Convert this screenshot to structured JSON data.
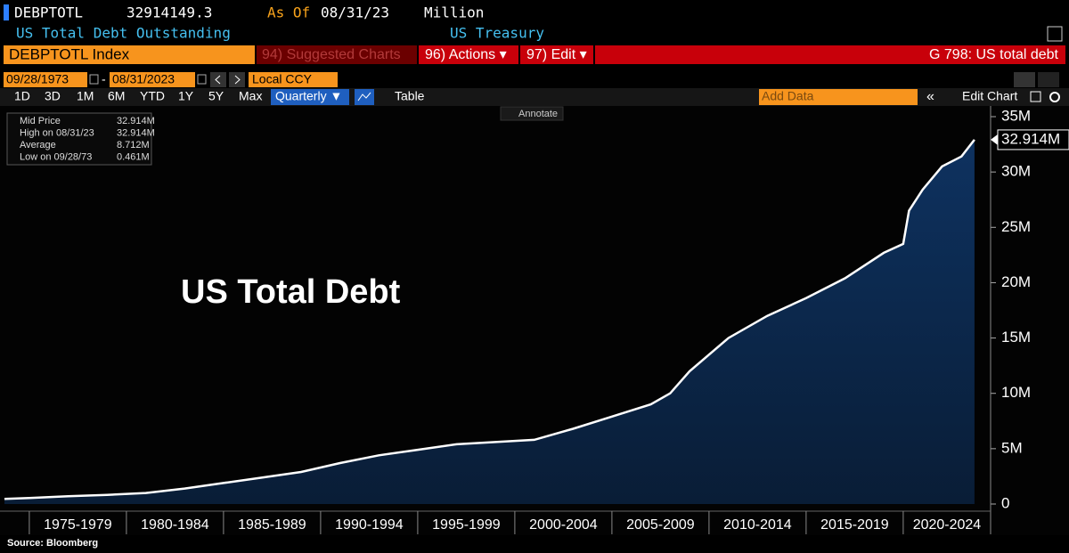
{
  "header": {
    "ticker": "DEBPTOTL",
    "last_value": "32914149.3",
    "as_of_label": "As Of",
    "as_of_date": "08/31/23",
    "unit": "Million",
    "description": "US Total Debt Outstanding",
    "source_name": "US Treasury"
  },
  "toolbar": {
    "security": "DEBPTOTL Index",
    "suggested": "94) Suggested Charts",
    "actions": "96) Actions ▾",
    "edit": "97) Edit ▾",
    "function": "G 798: US total debt",
    "start_date": "09/28/1973",
    "date_sep": "-",
    "end_date": "08/31/2023",
    "currency": "Local CCY",
    "ranges": [
      "1D",
      "3D",
      "1M",
      "6M",
      "YTD",
      "1Y",
      "5Y",
      "Max"
    ],
    "frequency": "Quarterly ▼",
    "table": "Table",
    "add_data": "Add Data",
    "collapse": "«",
    "edit_chart": "Edit Chart",
    "annotate": "Annotate"
  },
  "legend_box": [
    [
      "Mid Price",
      "32.914M"
    ],
    [
      "High on 08/31/23",
      "32.914M"
    ],
    [
      "Average",
      "8.712M"
    ],
    [
      "Low on 09/28/73",
      "0.461M"
    ]
  ],
  "chart_data": {
    "type": "area",
    "annotation": "US Total Debt",
    "source": "Source: Bloomberg",
    "x": [
      1973.72,
      1975,
      1977,
      1979,
      1981,
      1983,
      1985,
      1987,
      1989,
      1991,
      1993,
      1995,
      1997,
      1999,
      2001,
      2003,
      2005,
      2007,
      2008,
      2009,
      2011,
      2013,
      2015,
      2017,
      2019,
      2020,
      2020.3,
      2021,
      2022,
      2023,
      2023.67
    ],
    "values": [
      0.461,
      0.55,
      0.7,
      0.83,
      1.0,
      1.4,
      1.9,
      2.4,
      2.9,
      3.7,
      4.4,
      4.9,
      5.4,
      5.6,
      5.8,
      6.8,
      7.9,
      9.0,
      10.0,
      12.0,
      15.0,
      17.0,
      18.6,
      20.4,
      22.7,
      23.5,
      26.5,
      28.4,
      30.5,
      31.4,
      32.914
    ],
    "last_label": "32.914M",
    "line_color": "#ffffff",
    "fill_color": "#0e3260",
    "xlim": [
      1973.72,
      2024.5
    ],
    "xticks": [
      {
        "value": 1975,
        "label": "1975-1979"
      },
      {
        "value": 1980,
        "label": "1980-1984"
      },
      {
        "value": 1985,
        "label": "1985-1989"
      },
      {
        "value": 1990,
        "label": "1990-1994"
      },
      {
        "value": 1995,
        "label": "1995-1999"
      },
      {
        "value": 2000,
        "label": "2000-2004"
      },
      {
        "value": 2005,
        "label": "2005-2009"
      },
      {
        "value": 2010,
        "label": "2010-2014"
      },
      {
        "value": 2015,
        "label": "2015-2019"
      },
      {
        "value": 2020,
        "label": "2020-2024"
      }
    ],
    "ylim": [
      0,
      35
    ],
    "yticks": [
      0,
      {
        "value": 5,
        "label": "5M"
      },
      {
        "value": 10,
        "label": "10M"
      },
      {
        "value": 15,
        "label": "15M"
      },
      {
        "value": 20,
        "label": "20M"
      },
      {
        "value": 25,
        "label": "25M"
      },
      {
        "value": 30,
        "label": "30M"
      },
      {
        "value": 35,
        "label": "35M"
      }
    ]
  }
}
